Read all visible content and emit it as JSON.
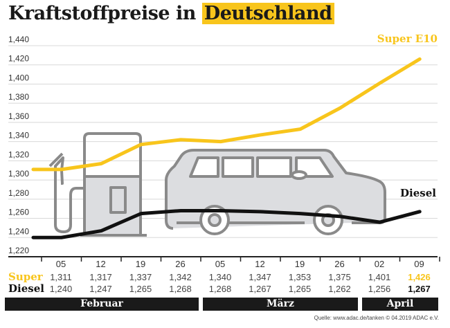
{
  "chart_data": {
    "type": "line",
    "title": "Kraftstoffpreise in",
    "title_highlight": "Deutschland",
    "ylim": [
      1.22,
      1.44
    ],
    "yticks": [
      "1,220",
      "1,240",
      "1,260",
      "1,280",
      "1,300",
      "1,320",
      "1,340",
      "1,360",
      "1,380",
      "1,400",
      "1,420",
      "1,440"
    ],
    "grid": true,
    "categories": [
      "05",
      "12",
      "19",
      "26",
      "05",
      "12",
      "19",
      "26",
      "02",
      "09"
    ],
    "months": [
      {
        "label": "Februar",
        "span": 4
      },
      {
        "label": "März",
        "span": 4
      },
      {
        "label": "April",
        "span": 2
      }
    ],
    "series": [
      {
        "name": "Super E10",
        "row_label": "Super",
        "color": "#f8c51c",
        "values": [
          1.311,
          1.317,
          1.337,
          1.342,
          1.34,
          1.347,
          1.353,
          1.375,
          1.401,
          1.426
        ],
        "labels": [
          "1,311",
          "1,317",
          "1,337",
          "1,342",
          "1,340",
          "1,347",
          "1,353",
          "1,375",
          "1,401",
          "1,426"
        ]
      },
      {
        "name": "Diesel",
        "row_label": "Diesel",
        "color": "#111111",
        "values": [
          1.24,
          1.247,
          1.265,
          1.268,
          1.268,
          1.267,
          1.265,
          1.262,
          1.256,
          1.267
        ],
        "labels": [
          "1,240",
          "1,247",
          "1,265",
          "1,268",
          "1,268",
          "1,267",
          "1,265",
          "1,262",
          "1,256",
          "1,267"
        ]
      }
    ],
    "source": "Quelle: www.adac.de/tanken   © 04.2019  ADAC e.V."
  }
}
